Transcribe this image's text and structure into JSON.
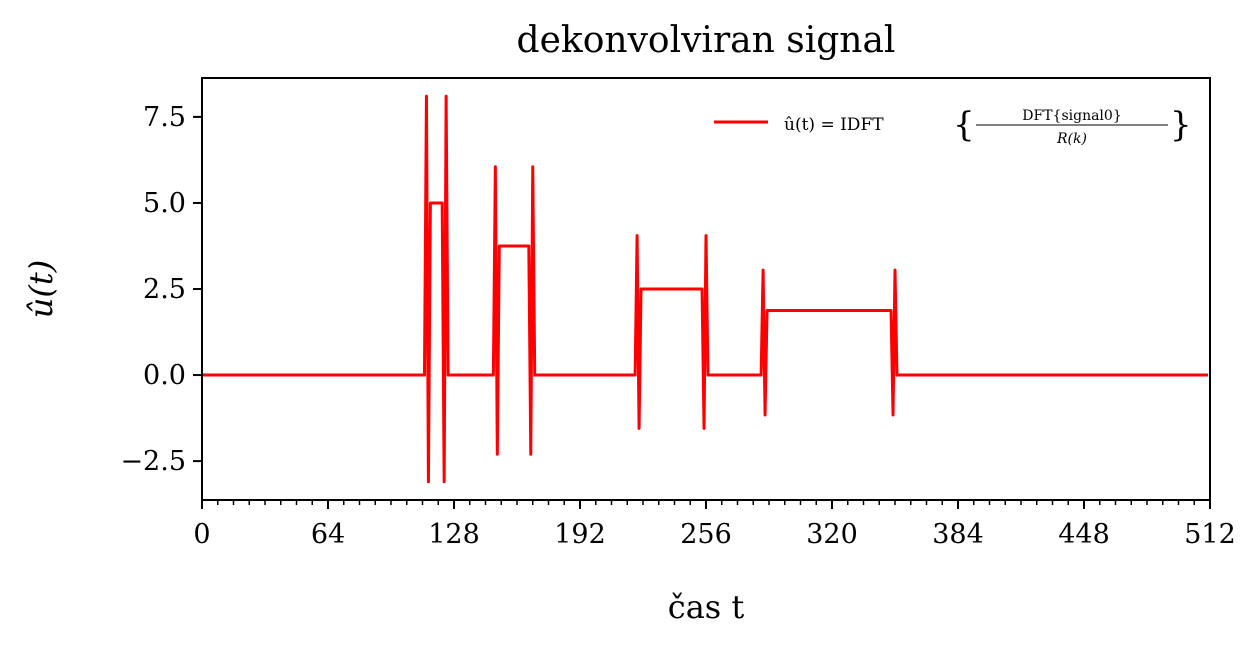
{
  "chart_data": {
    "type": "line",
    "title": "dekonvolviran signal",
    "xlabel": "čas t",
    "ylabel": "û(t)",
    "xlim": [
      0,
      512
    ],
    "ylim": [
      -3.63,
      8.63
    ],
    "xticks": [
      0,
      64,
      128,
      192,
      256,
      320,
      384,
      448,
      512
    ],
    "xtick_labels": [
      "0",
      "64",
      "128",
      "192",
      "256",
      "320",
      "384",
      "448",
      "512"
    ],
    "x_minor_step": 8,
    "yticks": [
      -2.5,
      0,
      2.5,
      5,
      7.5
    ],
    "ytick_labels": [
      "−2.5",
      "0.0",
      "2.5",
      "5.0",
      "7.5"
    ],
    "grid": false,
    "legend_position": "top-right",
    "series": [
      {
        "name": "û(t) = IDFT { DFT{signal0} / R(k) }",
        "legend_parts": {
          "lhs": "û(t) = IDFT",
          "numerator": "DFT{signal0}",
          "denominator": "R(k)"
        },
        "color": "#ff0000",
        "x": [
          0,
          113,
          114,
          115,
          116,
          122,
          123,
          124,
          125,
          148,
          149,
          150,
          151,
          166,
          167,
          168,
          169,
          220,
          221,
          222,
          223,
          254,
          255,
          256,
          257,
          284,
          285,
          286,
          287,
          350,
          351,
          352,
          353,
          511
        ],
        "y": [
          0,
          0,
          8.1,
          -3.1,
          5,
          5,
          -3.1,
          8.1,
          0,
          0,
          6.05,
          -2.3,
          3.75,
          3.75,
          -2.3,
          6.05,
          0,
          0,
          4.05,
          -1.55,
          2.5,
          2.5,
          -1.55,
          4.05,
          0,
          0,
          3.05,
          -1.16,
          1.875,
          1.875,
          -1.16,
          3.05,
          0,
          0
        ]
      }
    ]
  }
}
